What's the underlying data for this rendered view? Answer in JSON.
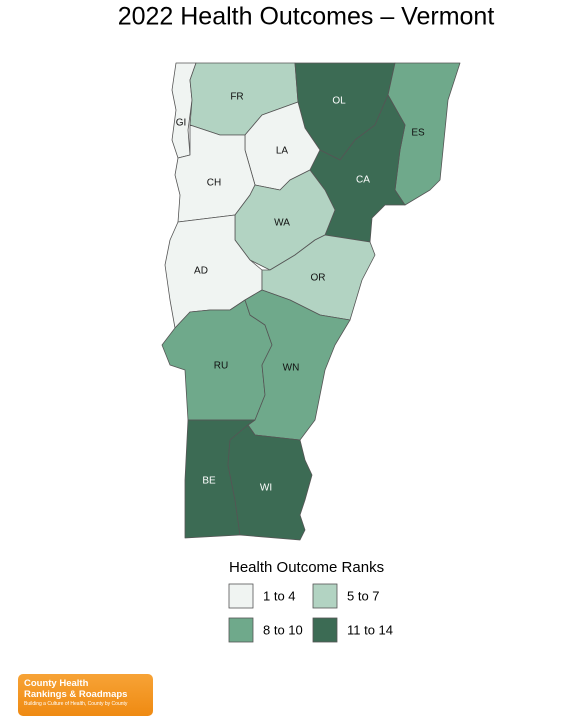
{
  "title": "2022 Health Outcomes – Vermont",
  "counties": [
    {
      "label": "GI",
      "color": "#f0f4f2"
    },
    {
      "label": "FR",
      "color": "#b2d3c2"
    },
    {
      "label": "OL",
      "color": "#3c6b54"
    },
    {
      "label": "ES",
      "color": "#6fa98b"
    },
    {
      "label": "LA",
      "color": "#f0f4f2"
    },
    {
      "label": "CA",
      "color": "#3c6b54"
    },
    {
      "label": "CH",
      "color": "#f0f4f2"
    },
    {
      "label": "WA",
      "color": "#b2d3c2"
    },
    {
      "label": "AD",
      "color": "#f0f4f2"
    },
    {
      "label": "OR",
      "color": "#b2d3c2"
    },
    {
      "label": "RU",
      "color": "#6fa98b"
    },
    {
      "label": "WN",
      "color": "#6fa98b"
    },
    {
      "label": "BE",
      "color": "#3c6b54"
    },
    {
      "label": "WI",
      "color": "#3c6b54"
    }
  ],
  "legend": {
    "title": "Health Outcome Ranks",
    "items": [
      {
        "label": "1 to 4",
        "color": "#f0f4f2"
      },
      {
        "label": "5 to 7",
        "color": "#b2d3c2"
      },
      {
        "label": "8 to 10",
        "color": "#6fa98b"
      },
      {
        "label": "11 to 14",
        "color": "#3c6b54"
      }
    ]
  },
  "logo": {
    "line1": "County Health",
    "line2": "Rankings & Roadmaps",
    "tagline": "Building a Culture of Health, County by County"
  }
}
